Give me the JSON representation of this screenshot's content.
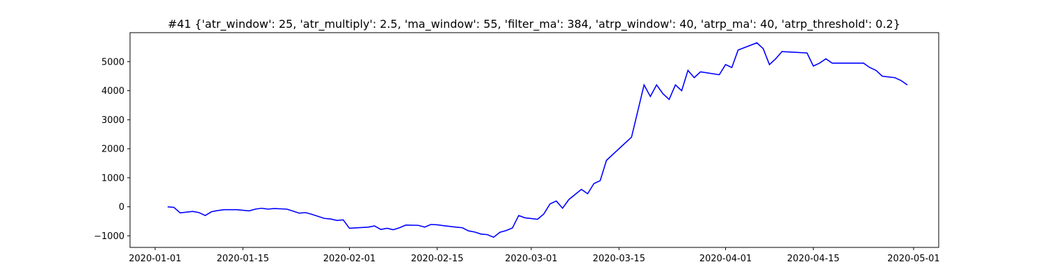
{
  "chart_data": {
    "type": "line",
    "title": "#41 {'atr_window': 25, 'atr_multiply': 2.5, 'ma_window': 55, 'filter_ma': 384, 'atrp_window': 40, 'atrp_ma': 40, 'atrp_threshold': 0.2}",
    "x": [
      "2020-01-03",
      "2020-01-04",
      "2020-01-05",
      "2020-01-07",
      "2020-01-08",
      "2020-01-09",
      "2020-01-10",
      "2020-01-11",
      "2020-01-12",
      "2020-01-14",
      "2020-01-15",
      "2020-01-16",
      "2020-01-17",
      "2020-01-18",
      "2020-01-19",
      "2020-01-20",
      "2020-01-22",
      "2020-01-23",
      "2020-01-24",
      "2020-01-25",
      "2020-01-26",
      "2020-01-28",
      "2020-01-29",
      "2020-01-30",
      "2020-01-31",
      "2020-02-01",
      "2020-02-04",
      "2020-02-05",
      "2020-02-06",
      "2020-02-07",
      "2020-02-08",
      "2020-02-09",
      "2020-02-10",
      "2020-02-12",
      "2020-02-13",
      "2020-02-14",
      "2020-02-15",
      "2020-02-16",
      "2020-02-18",
      "2020-02-19",
      "2020-02-20",
      "2020-02-21",
      "2020-02-22",
      "2020-02-23",
      "2020-02-24",
      "2020-02-25",
      "2020-02-26",
      "2020-02-27",
      "2020-02-28",
      "2020-02-29",
      "2020-03-02",
      "2020-03-03",
      "2020-03-04",
      "2020-03-05",
      "2020-03-06",
      "2020-03-07",
      "2020-03-09",
      "2020-03-10",
      "2020-03-11",
      "2020-03-12",
      "2020-03-13",
      "2020-03-14",
      "2020-03-17",
      "2020-03-18",
      "2020-03-19",
      "2020-03-20",
      "2020-03-21",
      "2020-03-22",
      "2020-03-23",
      "2020-03-24",
      "2020-03-25",
      "2020-03-26",
      "2020-03-27",
      "2020-03-28",
      "2020-03-31",
      "2020-04-01",
      "2020-04-02",
      "2020-04-03",
      "2020-04-06",
      "2020-04-07",
      "2020-04-08",
      "2020-04-09",
      "2020-04-10",
      "2020-04-14",
      "2020-04-15",
      "2020-04-16",
      "2020-04-17",
      "2020-04-18",
      "2020-04-23",
      "2020-04-24",
      "2020-04-25",
      "2020-04-26",
      "2020-04-28",
      "2020-04-29",
      "2020-04-30"
    ],
    "series": [
      {
        "color": "#0000ff",
        "values": [
          0,
          -20,
          -210,
          -160,
          -200,
          -300,
          -170,
          -130,
          -100,
          -100,
          -120,
          -140,
          -80,
          -50,
          -80,
          -60,
          -80,
          -150,
          -220,
          -200,
          -260,
          -400,
          -420,
          -470,
          -450,
          -740,
          -700,
          -660,
          -780,
          -740,
          -790,
          -720,
          -630,
          -640,
          -700,
          -610,
          -620,
          -650,
          -700,
          -720,
          -830,
          -870,
          -940,
          -960,
          -1050,
          -880,
          -820,
          -730,
          -300,
          -380,
          -430,
          -250,
          100,
          200,
          -50,
          250,
          600,
          450,
          800,
          900,
          1600,
          1800,
          2400,
          3300,
          4200,
          3800,
          4200,
          3900,
          3700,
          4200,
          4000,
          4700,
          4450,
          4650,
          4550,
          4900,
          4800,
          5400,
          5650,
          5450,
          4900,
          5100,
          5350,
          5300,
          4850,
          4950,
          5100,
          4950,
          4950,
          4800,
          4700,
          4500,
          4450,
          4350,
          4200
        ]
      }
    ],
    "xlim": [
      "2019-12-28",
      "2020-05-05"
    ],
    "xticks": [
      "2020-01-01",
      "2020-01-15",
      "2020-02-01",
      "2020-02-15",
      "2020-03-01",
      "2020-03-15",
      "2020-04-01",
      "2020-04-15",
      "2020-05-01"
    ],
    "ylim": [
      -1400,
      6000
    ],
    "yticks": [
      {
        "value": -1000,
        "label": "−1000"
      },
      0,
      1000,
      2000,
      3000,
      4000,
      5000
    ]
  }
}
